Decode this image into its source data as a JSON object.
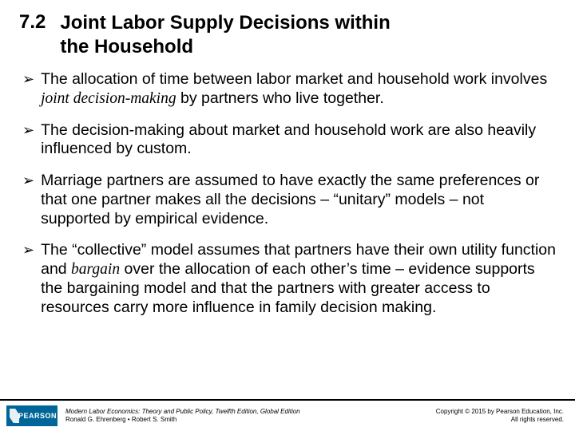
{
  "header": {
    "section_number": "7.2",
    "title_line1": "Joint  Labor Supply Decisions within",
    "title_line2": "the Household"
  },
  "bullets": [
    {
      "pre": "The allocation of time between labor market and household work involves ",
      "emph": "joint decision-making",
      "post": " by partners who live together."
    },
    {
      "pre": "The decision-making about market and household work are also heavily influenced by custom.",
      "emph": "",
      "post": ""
    },
    {
      "pre": "Marriage partners are assumed to have exactly the same preferences or that one partner makes all the decisions – “unitary” models – not supported by empirical evidence.",
      "emph": "",
      "post": ""
    },
    {
      "pre": "The “collective” model assumes that partners have their own utility function and ",
      "emph": "bargain",
      "post": " over the allocation of each other’s time – evidence supports the bargaining model and that the partners with greater access to resources carry more influence in family decision making."
    }
  ],
  "footer": {
    "logo_text": "PEARSON",
    "book_title": "Modern Labor Economics: Theory and Public Policy, Twelfth Edition, Global Edition",
    "authors": "Ronald G. Ehrenberg • Robert S. Smith",
    "copyright_line1": "Copyright © 2015 by Pearson Education, Inc.",
    "copyright_line2": "All rights reserved."
  },
  "colors": {
    "brand": "#006699",
    "text": "#000000",
    "background": "#ffffff"
  }
}
